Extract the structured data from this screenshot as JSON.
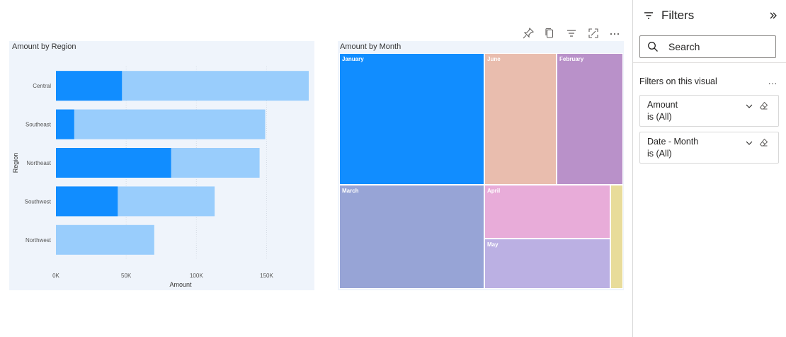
{
  "toolbar": {
    "icons": [
      "pin-icon",
      "copy-icon",
      "filter-icon",
      "focus-mode-icon",
      "more-options-icon"
    ]
  },
  "region_chart": {
    "title": "Amount by Region",
    "ylabel": "Region",
    "xlabel": "Amount",
    "x_ticks": [
      "0K",
      "50K",
      "100K",
      "150K"
    ],
    "colors": {
      "dark": "#118dff",
      "light": "#99cdfc",
      "background": "#eff4fb"
    }
  },
  "month_chart": {
    "title": "Amount by Month"
  },
  "chart_data": [
    {
      "type": "bar",
      "orientation": "horizontal",
      "title": "Amount by Region",
      "xlabel": "Amount",
      "ylabel": "Region",
      "xlim": [
        0,
        180000
      ],
      "categories": [
        "Central",
        "Southeast",
        "Northeast",
        "Southwest",
        "Northwest"
      ],
      "series": [
        {
          "values": [
            47000,
            13000,
            82000,
            44000,
            0
          ],
          "color": "#118dff"
        },
        {
          "values": [
            180000,
            149000,
            145000,
            113000,
            70000
          ],
          "color": "#99cdfc"
        }
      ],
      "grid": true
    },
    {
      "type": "treemap",
      "title": "Amount by Month",
      "items": [
        {
          "label": "January",
          "value": 27,
          "color": "#118dff"
        },
        {
          "label": "March",
          "value": 19.8,
          "color": "#97a4d6"
        },
        {
          "label": "June",
          "value": 13.1,
          "color": "#e9bdae"
        },
        {
          "label": "February",
          "value": 12.2,
          "color": "#b991c9"
        },
        {
          "label": "April",
          "value": 10.2,
          "color": "#e8acd9"
        },
        {
          "label": "May",
          "value": 9.3,
          "color": "#bbb0e3"
        },
        {
          "label": "",
          "value": 2.2,
          "color": "#e8dc9a"
        }
      ]
    }
  ],
  "filters": {
    "title": "Filters",
    "search_placeholder": "Search",
    "section_label": "Filters on this visual",
    "more": "...",
    "cards": [
      {
        "name": "Amount",
        "state": "is (All)"
      },
      {
        "name": "Date - Month",
        "state": "is (All)"
      }
    ]
  }
}
